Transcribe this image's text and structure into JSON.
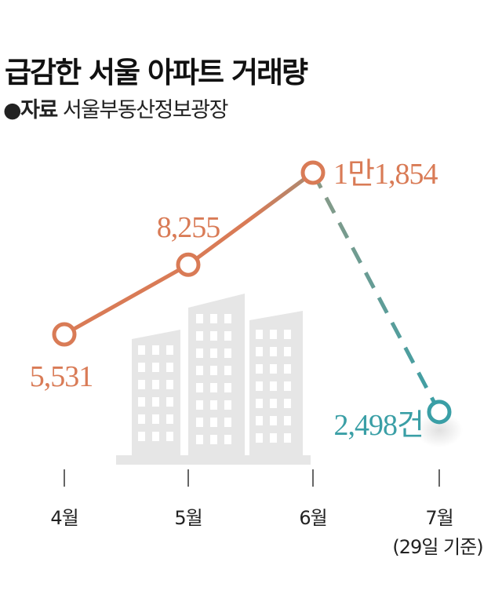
{
  "title": "급감한 서울 아파트 거래량",
  "source": {
    "bullet": "●",
    "label": "자료",
    "text": "서울부동산정보광장"
  },
  "colors": {
    "orange": "#D97B56",
    "teal": "#3A9FA6",
    "building": "#E6E6E6"
  },
  "chart_data": {
    "type": "line",
    "categories": [
      "4월",
      "5월",
      "6월",
      "7월"
    ],
    "category_notes": [
      "",
      "",
      "",
      "(29일 기준)"
    ],
    "values": [
      5531,
      8255,
      11854,
      2498
    ],
    "data_labels": [
      "5,531",
      "8,255",
      "1만1,854",
      "2,498건"
    ],
    "last_segment_style": "dashed",
    "grid": false
  }
}
